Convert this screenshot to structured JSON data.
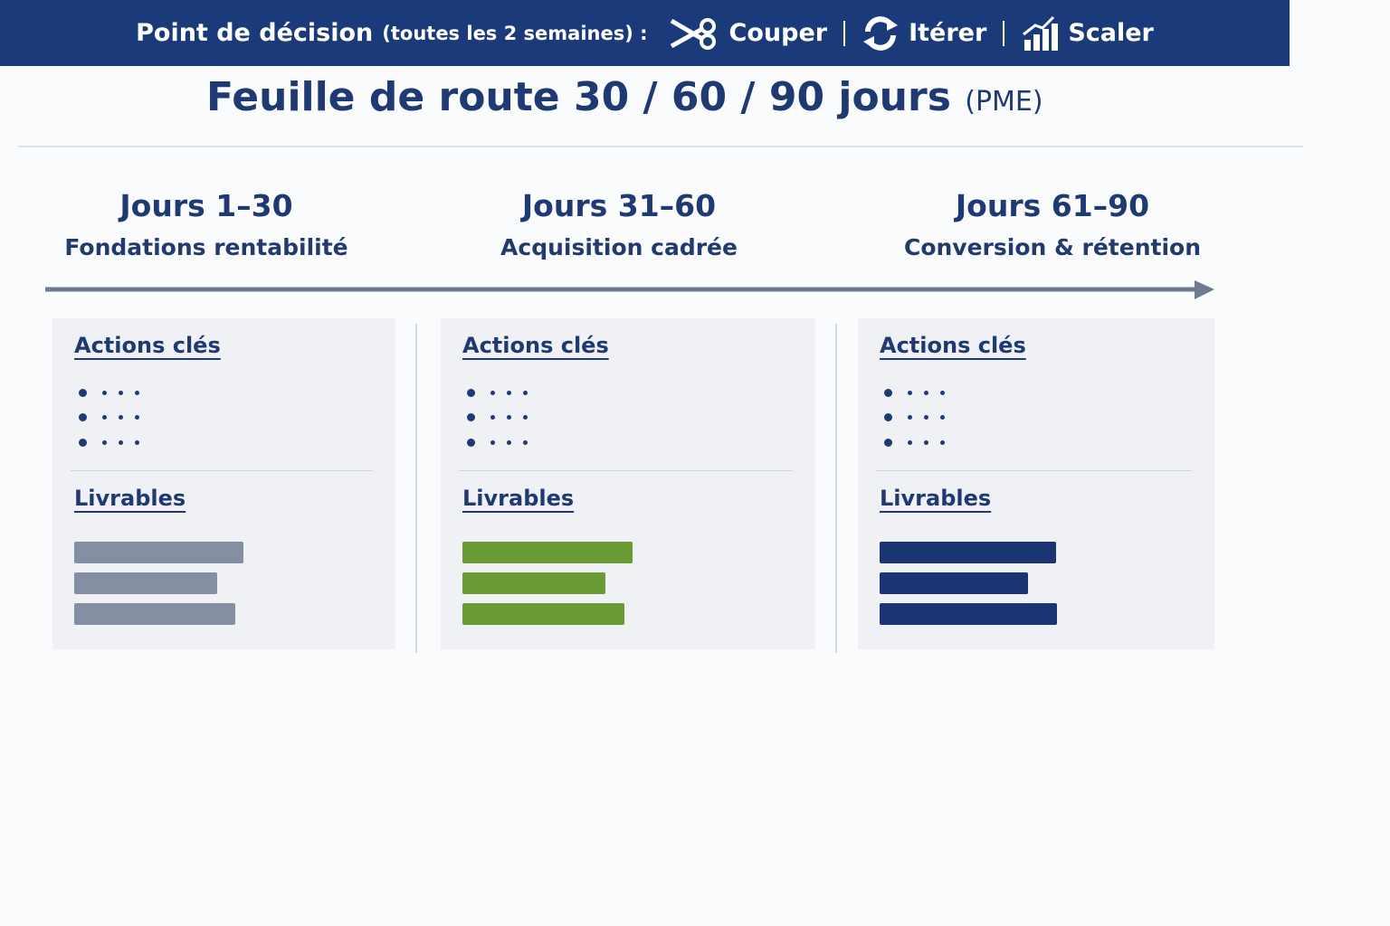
{
  "header": {
    "title": "Feuille de route 30 / 60 / 90 jours",
    "qualifier": "(PME)"
  },
  "phases": [
    {
      "range": "Jours 1–30",
      "subtitle": "Fondations rentabilité",
      "actions_title": "Actions clés",
      "deliverables_title": "Livrables"
    },
    {
      "range": "Jours 31–60",
      "subtitle": "Acquisition cadrée",
      "actions_title": "Actions clés",
      "deliverables_title": "Livrables"
    },
    {
      "range": "Jours 61–90",
      "subtitle": "Conversion & rétention",
      "actions_title": "Actions clés",
      "deliverables_title": "Livrables"
    }
  ],
  "banner": {
    "label": "Point de décision",
    "frequency": "(toutes les 2 semaines) :",
    "options": [
      "Couper",
      "Itérer",
      "Scaler"
    ]
  }
}
